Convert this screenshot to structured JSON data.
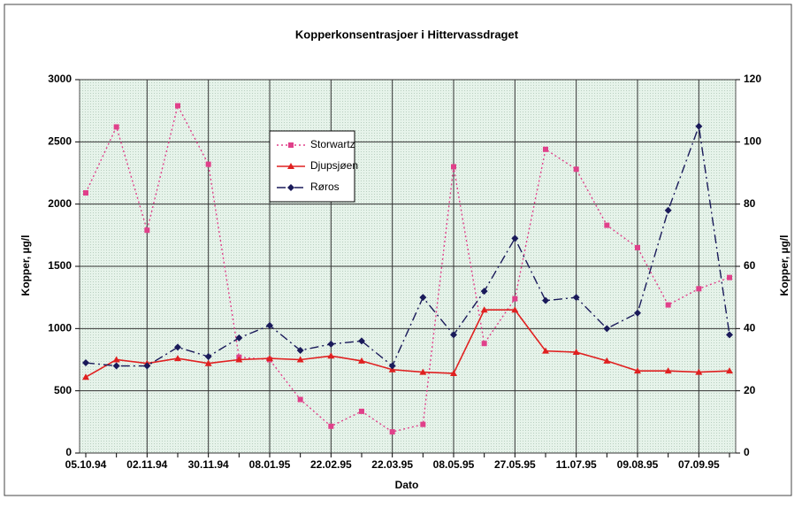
{
  "chart_data": {
    "type": "line",
    "title": "Kopperkonsentrasjoer i Hittervassdraget",
    "x_label": "Dato",
    "y_label": "Kopper, µg/l",
    "y2_label": "Kopper, µg/l",
    "categories": [
      "05.10.94",
      null,
      "02.11.94",
      null,
      "30.11.94",
      null,
      "08.01.95",
      null,
      "22.02.95",
      null,
      "22.03.95",
      null,
      "08.05.95",
      null,
      "27.05.95",
      null,
      "11.07.95",
      null,
      "09.08.95",
      null,
      "07.09.95",
      null
    ],
    "ylim": [
      0,
      3000
    ],
    "yticks": [
      0,
      500,
      1000,
      1500,
      2000,
      2500,
      3000
    ],
    "y2lim": [
      0,
      120
    ],
    "y2ticks": [
      0,
      20,
      40,
      60,
      80,
      100,
      120
    ],
    "grid": true,
    "series": [
      {
        "name": "Storwartz",
        "color": "#e0408a",
        "marker": "square",
        "dash": "dotted",
        "values": [
          2090,
          2620,
          1790,
          2790,
          2320,
          770,
          750,
          430,
          215,
          335,
          170,
          230,
          2300,
          880,
          1240,
          2440,
          2280,
          1830,
          1650,
          1190,
          1320,
          1410
        ]
      },
      {
        "name": "Djupsjøen",
        "color": "#e02020",
        "marker": "triangle",
        "dash": "solid",
        "values": [
          610,
          750,
          720,
          760,
          720,
          750,
          760,
          750,
          780,
          740,
          670,
          650,
          640,
          1150,
          1150,
          820,
          810,
          740,
          660,
          660,
          650,
          660
        ]
      },
      {
        "name": "Røros",
        "color": "#1a1a5a",
        "marker": "diamond",
        "dash": "dashdot",
        "axis": "y2",
        "values": [
          29,
          28,
          28,
          34,
          31,
          37,
          41,
          33,
          35,
          36,
          28,
          50,
          38,
          52,
          69,
          49,
          50,
          40,
          45,
          78,
          105,
          38
        ]
      }
    ]
  }
}
